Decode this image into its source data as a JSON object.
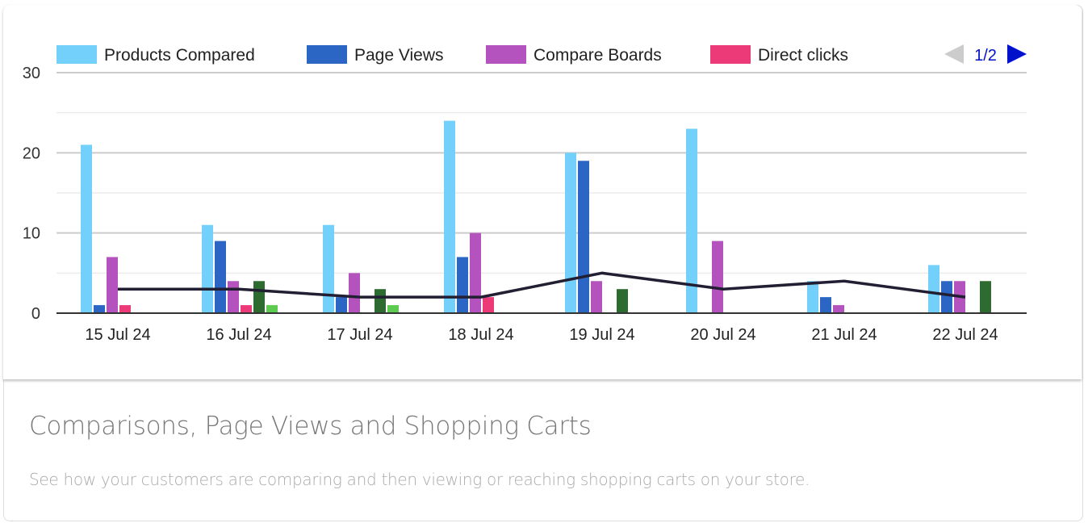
{
  "chart_data": {
    "type": "bar",
    "categories": [
      "15 Jul 24",
      "16 Jul 24",
      "17 Jul 24",
      "18 Jul 24",
      "19 Jul 24",
      "20 Jul 24",
      "21 Jul 24",
      "22 Jul 24"
    ],
    "series": [
      {
        "name": "Products Compared",
        "color": "#73d0fa",
        "values": [
          21,
          11,
          11,
          24,
          20,
          23,
          4,
          6
        ]
      },
      {
        "name": "Page Views",
        "color": "#2b66c4",
        "values": [
          1,
          9,
          2,
          7,
          19,
          0,
          2,
          4
        ]
      },
      {
        "name": "Compare Boards",
        "color": "#b553be",
        "values": [
          7,
          4,
          5,
          10,
          4,
          9,
          1,
          4
        ]
      },
      {
        "name": "Direct clicks",
        "color": "#ec3a79",
        "values": [
          1,
          1,
          0,
          2,
          0,
          0,
          0,
          0
        ]
      },
      {
        "name": "",
        "color": "#2e6b30",
        "values": [
          0,
          4,
          3,
          0,
          3,
          0,
          0,
          4
        ]
      },
      {
        "name": "",
        "color": "#5ccb50",
        "values": [
          0,
          1,
          1,
          0,
          0,
          0,
          0,
          0
        ]
      }
    ],
    "line": {
      "color": "#221f33",
      "values": [
        3,
        3,
        2,
        2,
        5,
        3,
        4,
        2
      ]
    },
    "yticks": [
      0,
      10,
      20,
      30
    ],
    "ylim": [
      0,
      30
    ],
    "grid": true,
    "legend": {
      "placement": "top",
      "page": "1/2"
    }
  },
  "title": "Comparisons, Page Views and Shopping Carts",
  "subtitle": "See how your customers are comparing and then viewing or reaching shopping carts on your store."
}
